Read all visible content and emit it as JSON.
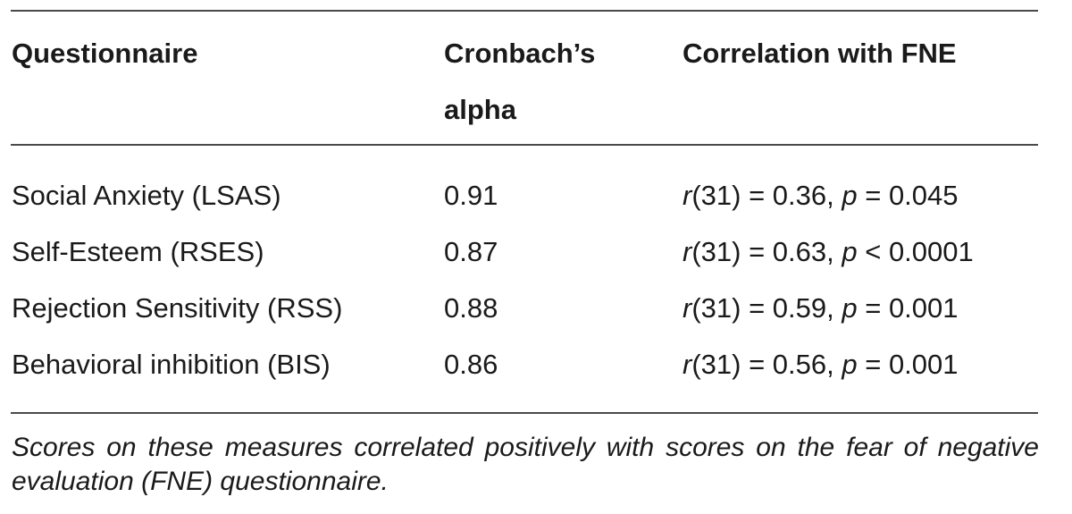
{
  "table": {
    "headers": {
      "questionnaire": "Questionnaire",
      "alpha": "Cronbach’s alpha",
      "correlation": "Correlation with FNE"
    },
    "rows": [
      {
        "questionnaire": "Social Anxiety (LSAS)",
        "alpha": "0.91",
        "corr": {
          "r": "r",
          "df": "(31) = 0.36, ",
          "p": "p",
          "rest": " = 0.045"
        }
      },
      {
        "questionnaire": "Self-Esteem (RSES)",
        "alpha": "0.87",
        "corr": {
          "r": "r",
          "df": "(31) = 0.63, ",
          "p": "p",
          "rest": " < 0.0001"
        }
      },
      {
        "questionnaire": "Rejection Sensitivity (RSS)",
        "alpha": "0.88",
        "corr": {
          "r": "r",
          "df": "(31) = 0.59, ",
          "p": "p",
          "rest": " = 0.001"
        }
      },
      {
        "questionnaire": "Behavioral inhibition (BIS)",
        "alpha": "0.86",
        "corr": {
          "r": "r",
          "df": "(31) = 0.56, ",
          "p": "p",
          "rest": " = 0.001"
        }
      }
    ],
    "footnote": "Scores on these measures correlated positively with scores on the fear of negative evaluation (FNE) questionnaire."
  }
}
